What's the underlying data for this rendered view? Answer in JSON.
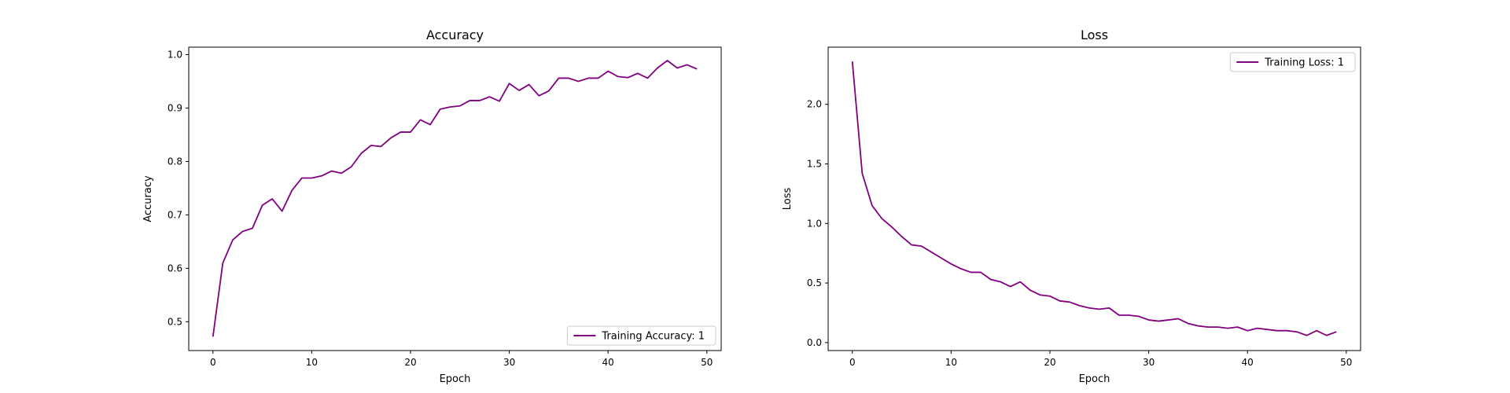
{
  "chart_data": [
    {
      "type": "line",
      "title": "Accuracy",
      "xlabel": "Epoch",
      "ylabel": "Accuracy",
      "xlim": [
        -2.45,
        51.45
      ],
      "ylim": [
        0.446,
        1.014
      ],
      "xticks": [
        0,
        10,
        20,
        30,
        40,
        50
      ],
      "yticks": [
        0.5,
        0.6,
        0.7,
        0.8,
        0.9,
        1.0
      ],
      "yticks_labels": [
        "0.5",
        "0.6",
        "0.7",
        "0.8",
        "0.9",
        "1.0"
      ],
      "grid": false,
      "legend_position": "lower-right",
      "series": [
        {
          "name": "Training Accuracy: 1",
          "color": "#800080",
          "x": [
            0,
            1,
            2,
            3,
            4,
            5,
            6,
            7,
            8,
            9,
            10,
            11,
            12,
            13,
            14,
            15,
            16,
            17,
            18,
            19,
            20,
            21,
            22,
            23,
            24,
            25,
            26,
            27,
            28,
            29,
            30,
            31,
            32,
            33,
            34,
            35,
            36,
            37,
            38,
            39,
            40,
            41,
            42,
            43,
            44,
            45,
            46,
            47,
            48,
            49
          ],
          "y": [
            0.472,
            0.61,
            0.653,
            0.669,
            0.675,
            0.718,
            0.73,
            0.707,
            0.746,
            0.769,
            0.769,
            0.773,
            0.782,
            0.778,
            0.79,
            0.815,
            0.83,
            0.828,
            0.844,
            0.855,
            0.855,
            0.878,
            0.869,
            0.898,
            0.902,
            0.904,
            0.914,
            0.914,
            0.921,
            0.913,
            0.946,
            0.933,
            0.944,
            0.923,
            0.932,
            0.956,
            0.956,
            0.95,
            0.956,
            0.956,
            0.969,
            0.959,
            0.957,
            0.965,
            0.956,
            0.975,
            0.989,
            0.975,
            0.981,
            0.973
          ]
        }
      ]
    },
    {
      "type": "line",
      "title": "Loss",
      "xlabel": "Epoch",
      "ylabel": "Loss",
      "xlim": [
        -2.45,
        51.45
      ],
      "ylim": [
        -0.067,
        2.48
      ],
      "xticks": [
        0,
        10,
        20,
        30,
        40,
        50
      ],
      "yticks": [
        0.0,
        0.5,
        1.0,
        1.5,
        2.0
      ],
      "yticks_labels": [
        "0.0",
        "0.5",
        "1.0",
        "1.5",
        "2.0"
      ],
      "grid": false,
      "legend_position": "upper-right",
      "series": [
        {
          "name": "Training Loss: 1",
          "color": "#800080",
          "x": [
            0,
            1,
            2,
            3,
            4,
            5,
            6,
            7,
            8,
            9,
            10,
            11,
            12,
            13,
            14,
            15,
            16,
            17,
            18,
            19,
            20,
            21,
            22,
            23,
            24,
            25,
            26,
            27,
            28,
            29,
            30,
            31,
            32,
            33,
            34,
            35,
            36,
            37,
            38,
            39,
            40,
            41,
            42,
            43,
            44,
            45,
            46,
            47,
            48,
            49
          ],
          "y": [
            2.36,
            1.42,
            1.15,
            1.04,
            0.97,
            0.89,
            0.82,
            0.81,
            0.76,
            0.71,
            0.66,
            0.62,
            0.59,
            0.59,
            0.53,
            0.51,
            0.47,
            0.51,
            0.44,
            0.4,
            0.39,
            0.35,
            0.34,
            0.31,
            0.29,
            0.28,
            0.29,
            0.23,
            0.23,
            0.22,
            0.19,
            0.18,
            0.19,
            0.2,
            0.16,
            0.14,
            0.13,
            0.13,
            0.12,
            0.13,
            0.1,
            0.12,
            0.11,
            0.1,
            0.1,
            0.09,
            0.06,
            0.1,
            0.06,
            0.09
          ]
        }
      ]
    }
  ]
}
